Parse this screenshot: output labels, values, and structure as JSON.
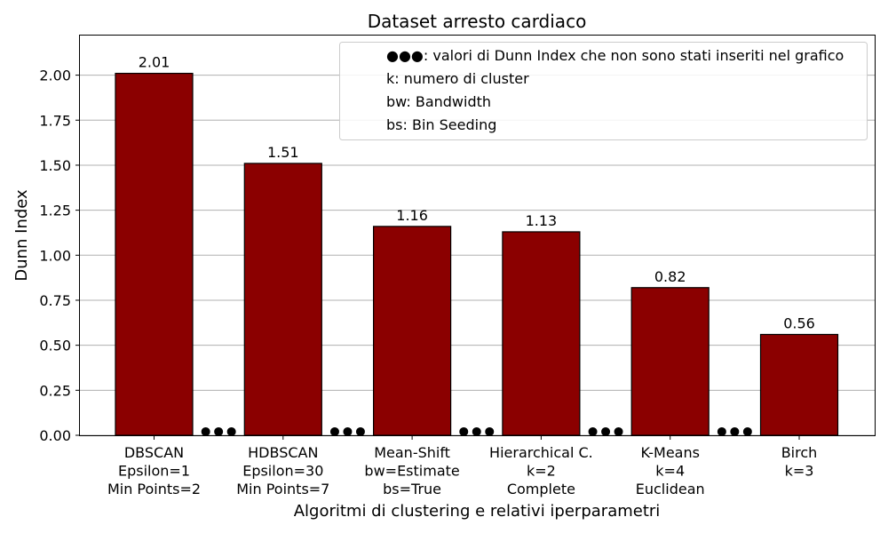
{
  "chart_data": {
    "type": "bar",
    "title": "Dataset arresto cardiaco",
    "xlabel": "Algoritmi di clustering e relativi iperparametri",
    "ylabel": "Dunn Index",
    "ylim": [
      0,
      2.22
    ],
    "yticks": [
      "0.00",
      "0.25",
      "0.50",
      "0.75",
      "1.00",
      "1.25",
      "1.50",
      "1.75",
      "2.00"
    ],
    "grid": "y",
    "legend_placement": "upper-right",
    "bar_color": "#8b0000",
    "categories": [
      [
        "DBSCAN",
        "Epsilon=1",
        "Min Points=2"
      ],
      [
        "HDBSCAN",
        "Epsilon=30",
        "Min Points=7"
      ],
      [
        "Mean-Shift",
        "bw=Estimate",
        "bs=True"
      ],
      [
        "Hierarchical C.",
        "k=2",
        "Complete"
      ],
      [
        "K-Means",
        "k=4",
        "Euclidean"
      ],
      [
        "Birch",
        "k=3"
      ]
    ],
    "values": [
      2.01,
      1.51,
      1.16,
      1.13,
      0.82,
      0.56
    ],
    "value_labels": [
      "2.01",
      "1.51",
      "1.16",
      "1.13",
      "0.82",
      "0.56"
    ],
    "omitted_marker_value": 0.02,
    "legend": [
      "●●●: valori di Dunn Index che non sono stati inseriti nel grafico",
      "k: numero di cluster",
      "bw: Bandwidth",
      "bs: Bin Seeding"
    ]
  }
}
